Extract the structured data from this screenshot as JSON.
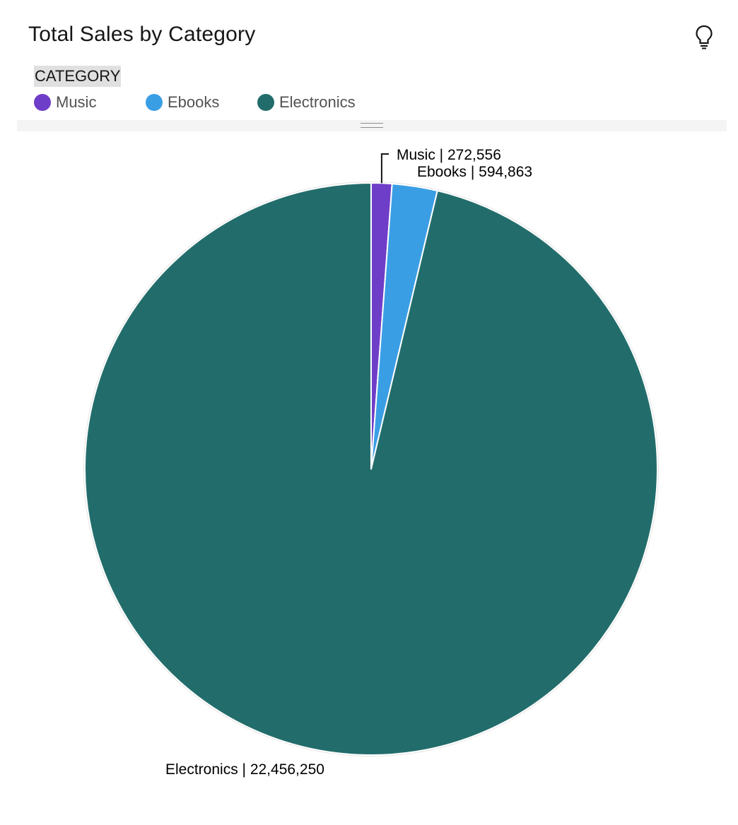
{
  "header": {
    "title": "Total Sales by Category",
    "insight_icon": "lightbulb-icon"
  },
  "legend": {
    "title": "CATEGORY",
    "items": [
      {
        "label": "Music",
        "color": "#6f3ec8"
      },
      {
        "label": "Ebooks",
        "color": "#3a9ee5"
      },
      {
        "label": "Electronics",
        "color": "#226d6c"
      }
    ]
  },
  "chart_data": {
    "type": "pie",
    "title": "Total Sales by Category",
    "legend_title": "CATEGORY",
    "legend_position": "top-left",
    "slices": [
      {
        "label": "Music",
        "value": 272556,
        "color": "#6f3ec8",
        "data_label": "Music | 272,556"
      },
      {
        "label": "Ebooks",
        "value": 594863,
        "color": "#3a9ee5",
        "data_label": "Ebooks | 594,863"
      },
      {
        "label": "Electronics",
        "value": 22456250,
        "color": "#226d6c",
        "data_label": "Electronics | 22,456,250"
      }
    ]
  }
}
